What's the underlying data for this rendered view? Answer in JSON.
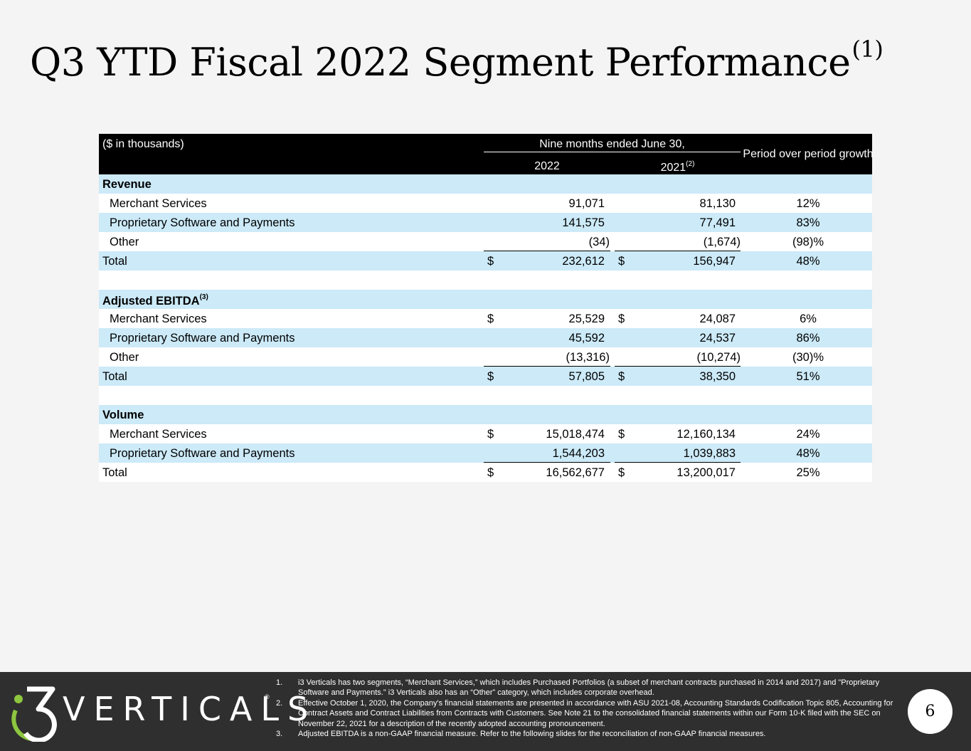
{
  "title": {
    "text": "Q3 YTD Fiscal 2022 Segment Performance",
    "sup": "(1)"
  },
  "table": {
    "unit_label": "($ in thousands)",
    "period_label": "Nine months ended June 30,",
    "col_2022": "2022",
    "col_2021": "2021",
    "col_2021_sup": "(2)",
    "col_growth": "Period over period growth",
    "currency_symbol": "$",
    "sections": [
      {
        "label": "Revenue",
        "rows": [
          {
            "label": "Merchant Services",
            "v2022": "91,071",
            "v2021": "81,130",
            "growth": "12%"
          },
          {
            "label": "Proprietary Software and Payments",
            "v2022": "141,575",
            "v2021": "77,491",
            "growth": "83%"
          },
          {
            "label": "Other",
            "v2022": "(34)",
            "v2021": "(1,674)",
            "growth": "(98)%"
          }
        ],
        "total": {
          "label": "Total",
          "v2022": "232,612",
          "v2021": "156,947",
          "growth": "48%"
        }
      },
      {
        "label": "Adjusted EBITDA",
        "label_sup": "(3)",
        "rows": [
          {
            "label": "Merchant Services",
            "v2022": "25,529",
            "v2021": "24,087",
            "growth": "6%"
          },
          {
            "label": "Proprietary Software and Payments",
            "v2022": "45,592",
            "v2021": "24,537",
            "growth": "86%"
          },
          {
            "label": "Other",
            "v2022": "(13,316)",
            "v2021": "(10,274)",
            "growth": "(30)%"
          }
        ],
        "total": {
          "label": "Total",
          "v2022": "57,805",
          "v2021": "38,350",
          "growth": "51%"
        }
      },
      {
        "label": "Volume",
        "rows": [
          {
            "label": "Merchant Services",
            "v2022": "15,018,474",
            "v2021": "12,160,134",
            "growth": "24%"
          },
          {
            "label": "Proprietary Software and Payments",
            "v2022": "1,544,203",
            "v2021": "1,039,883",
            "growth": "48%"
          }
        ],
        "total": {
          "label": "Total",
          "v2022": "16,562,677",
          "v2021": "13,200,017",
          "growth": "25%"
        }
      }
    ]
  },
  "footer": {
    "logo_text": "VERTICALS",
    "logo_mark": "3",
    "logo_tm": "®",
    "notes": [
      {
        "num": "1.",
        "text": "i3 Verticals has two segments, “Merchant Services,” which includes Purchased Portfolios (a subset of merchant contracts purchased in 2014 and 2017) and \"Proprietary Software and Payments.\" i3 Verticals also has an “Other” category, which includes corporate overhead."
      },
      {
        "num": "2.",
        "text": "Effective October 1, 2020, the Company's financial statements are presented in accordance with ASU 2021-08, Accounting Standards Codification Topic 805, Accounting for Contract Assets and Contract Liabilities from Contracts with Customers.  See Note 21 to the consolidated financial statements within our Form 10-K filed with the SEC on November 22, 2021 for a description of the recently adopted accounting pronouncement."
      },
      {
        "num": "3.",
        "text": "Adjusted EBITDA is a non-GAAP financial measure. Refer to the following slides for the reconciliation of non-GAAP financial measures."
      }
    ],
    "page_number": "6"
  },
  "colors": {
    "header_bg": "#000000",
    "row_blue": "#cceaf8",
    "footer_bg": "#2f2f2f",
    "accent_green": "#8dc63f"
  }
}
